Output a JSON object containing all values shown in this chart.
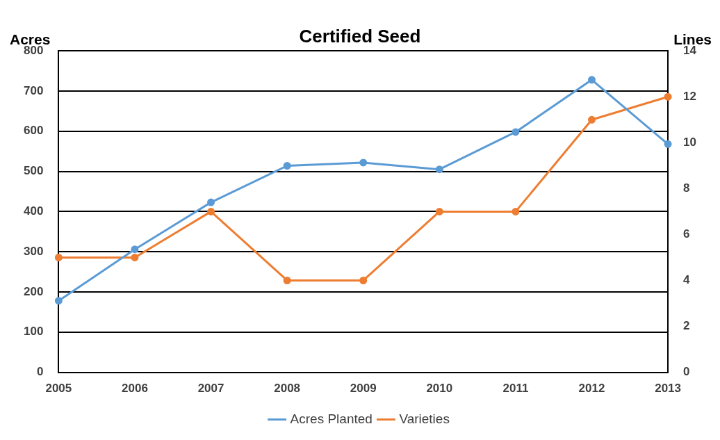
{
  "chart_data": {
    "type": "line",
    "title": "Certified Seed",
    "ylabel": "Acres",
    "y2label": "Lines",
    "categories": [
      "2005",
      "2006",
      "2007",
      "2008",
      "2009",
      "2010",
      "2011",
      "2012",
      "2013"
    ],
    "series": [
      {
        "name": "Acres Planted",
        "color": "#5b9bd5",
        "values": [
          178,
          306,
          423,
          514,
          522,
          505,
          598,
          728,
          568
        ]
      },
      {
        "name": "Varieties",
        "color": "#ed7d31",
        "axis": "y2",
        "values": [
          5,
          5,
          7,
          4,
          4,
          7,
          7,
          11,
          12
        ]
      }
    ],
    "ylim": [
      0,
      800
    ],
    "yticks": [
      0,
      100,
      200,
      300,
      400,
      500,
      600,
      700,
      800
    ],
    "y2lim": [
      0,
      14
    ],
    "y2ticks": [
      0,
      2,
      4,
      6,
      8,
      10,
      12,
      14
    ],
    "grid": "y",
    "legend": "bottom",
    "marker": "circle",
    "line_style": "solid"
  }
}
